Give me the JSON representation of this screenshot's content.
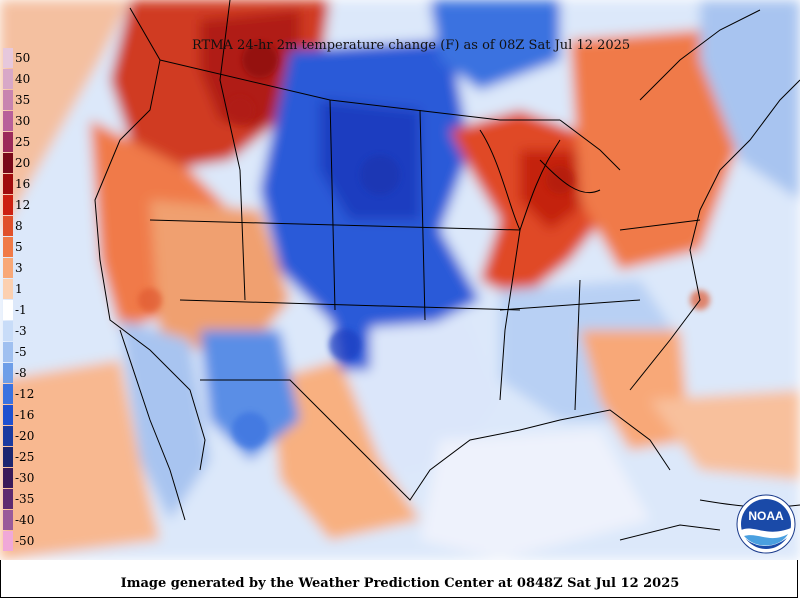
{
  "title": "RTMA 24-hr 2m temperature change (F) as of 08Z Sat Jul 12 2025",
  "footer": "Image generated by the Weather Prediction Center at 0848Z Sat Jul 12 2025",
  "logo": {
    "text": "NOAA",
    "icon": "noaa-logo"
  },
  "legend": [
    {
      "label": "50",
      "color": "#e6c8dc"
    },
    {
      "label": "40",
      "color": "#d8a8c8"
    },
    {
      "label": "35",
      "color": "#c884b0"
    },
    {
      "label": "30",
      "color": "#b8609a"
    },
    {
      "label": "25",
      "color": "#9c2a5a"
    },
    {
      "label": "20",
      "color": "#7a0a1a"
    },
    {
      "label": "16",
      "color": "#a00c0c"
    },
    {
      "label": "12",
      "color": "#cc2010"
    },
    {
      "label": "8",
      "color": "#e0502a"
    },
    {
      "label": "5",
      "color": "#f07a48"
    },
    {
      "label": "3",
      "color": "#f8a878"
    },
    {
      "label": "1",
      "color": "#fcd0b0"
    },
    {
      "label": "-1",
      "color": "#ffffff"
    },
    {
      "label": "-3",
      "color": "#c8dcf8"
    },
    {
      "label": "-5",
      "color": "#a0c0f0"
    },
    {
      "label": "-8",
      "color": "#6e9ee8"
    },
    {
      "label": "-12",
      "color": "#3a72e0"
    },
    {
      "label": "-16",
      "color": "#1e50d0"
    },
    {
      "label": "-20",
      "color": "#1a3aa0"
    },
    {
      "label": "-25",
      "color": "#1c2670"
    },
    {
      "label": "-30",
      "color": "#3a1a5a"
    },
    {
      "label": "-35",
      "color": "#5e2a70"
    },
    {
      "label": "-40",
      "color": "#9a5a9a"
    },
    {
      "label": "-50",
      "color": "#f0a8d8"
    }
  ]
}
